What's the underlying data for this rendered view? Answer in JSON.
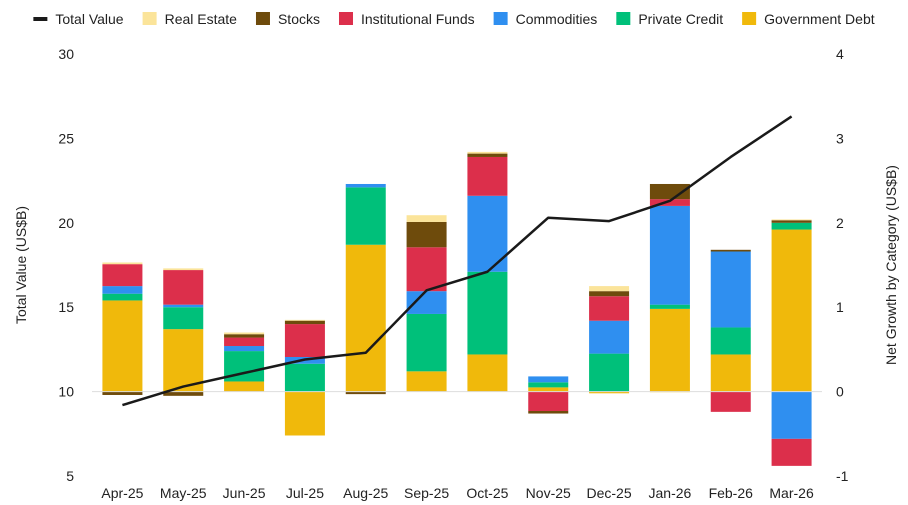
{
  "chart_data": {
    "type": "bar",
    "subtype": "stacked-bar-with-line",
    "categories": [
      "Apr-25",
      "May-25",
      "Jun-25",
      "Jul-25",
      "Aug-25",
      "Sep-25",
      "Oct-25",
      "Nov-25",
      "Dec-25",
      "Jan-26",
      "Feb-26",
      "Mar-26"
    ],
    "ylabel": "Total Value (US$B)",
    "y2label": "Net Growth by Category (US$B)",
    "ylim": [
      5,
      30
    ],
    "y2lim": [
      -1,
      4
    ],
    "yticks": [
      "5",
      "10",
      "15",
      "20",
      "25",
      "30"
    ],
    "y2ticks": [
      "-1",
      "0",
      "1",
      "2",
      "3",
      "4"
    ],
    "grid": false,
    "legend_position": "top",
    "line_series": {
      "name": "Total Value",
      "color": "#1a1a1a",
      "axis": "left",
      "values": [
        9.2,
        10.3,
        11.1,
        11.9,
        12.3,
        16.0,
        17.1,
        20.3,
        20.1,
        21.3,
        23.9,
        26.3
      ]
    },
    "bar_series": [
      {
        "name": "Government Debt",
        "color": "#f0b90b",
        "axis": "right",
        "values": [
          1.08,
          0.74,
          0.12,
          -0.52,
          1.74,
          0.24,
          0.44,
          0.05,
          -0.02,
          0.98,
          0.44,
          1.92
        ]
      },
      {
        "name": "Private Credit",
        "color": "#00c07a",
        "axis": "right",
        "values": [
          0.08,
          0.26,
          0.36,
          0.33,
          0.68,
          0.68,
          0.98,
          0.06,
          0.45,
          0.05,
          0.32,
          0.08
        ]
      },
      {
        "name": "Commodities",
        "color": "#2f8ff0",
        "axis": "right",
        "values": [
          0.09,
          0.03,
          0.06,
          0.08,
          0.04,
          0.27,
          0.9,
          0.07,
          0.39,
          1.17,
          0.9,
          -0.56
        ]
      },
      {
        "name": "Institutional Funds",
        "color": "#dc2f4b",
        "axis": "right",
        "values": [
          0.26,
          0.41,
          0.1,
          0.39,
          0.0,
          0.52,
          0.46,
          -0.23,
          0.29,
          0.08,
          -0.24,
          -0.32
        ]
      },
      {
        "name": "Stocks",
        "color": "#6e4b0c",
        "axis": "right",
        "values": [
          -0.04,
          -0.05,
          0.04,
          0.04,
          -0.03,
          0.3,
          0.04,
          -0.03,
          0.06,
          0.18,
          0.02,
          0.03
        ]
      },
      {
        "name": "Real Estate",
        "color": "#fbe49a",
        "axis": "right",
        "values": [
          0.02,
          0.02,
          0.02,
          0.01,
          0.0,
          0.08,
          0.02,
          0.0,
          0.06,
          -0.01,
          0.0,
          0.01
        ]
      }
    ],
    "legend_order": [
      "Total Value",
      "Real Estate",
      "Stocks",
      "Institutional Funds",
      "Commodities",
      "Private Credit",
      "Government Debt"
    ]
  }
}
